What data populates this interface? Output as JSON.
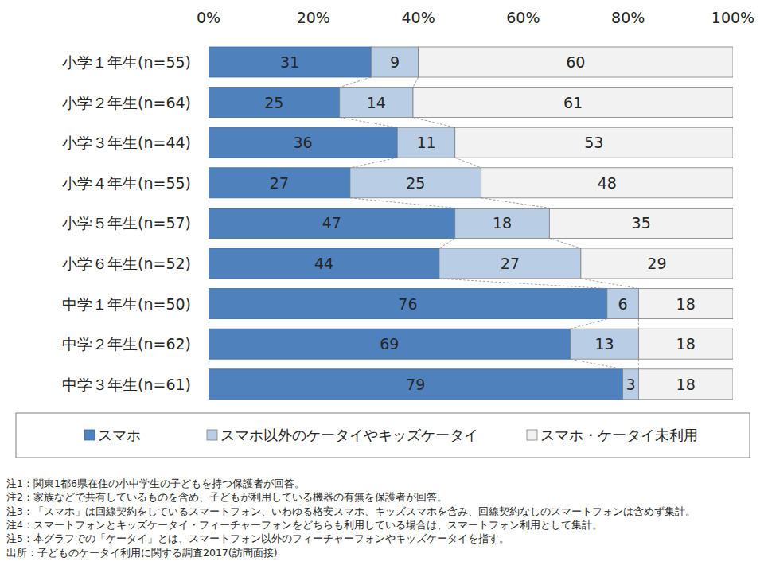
{
  "chart_data": {
    "type": "bar",
    "orientation": "horizontal",
    "stacked": true,
    "data_labels": true,
    "grid": false,
    "legend": "bottom",
    "categories": [
      "小学１年生(n=55)",
      "小学２年生(n=64)",
      "小学３年生(n=44)",
      "小学４年生(n=55)",
      "小学５年生(n=57)",
      "小学６年生(n=52)",
      "中学１年生(n=50)",
      "中学２年生(n=62)",
      "中学３年生(n=61)"
    ],
    "series": [
      {
        "name": "スマホ",
        "color": "#4f81bd",
        "values": [
          31,
          25,
          36,
          27,
          47,
          44,
          76,
          69,
          79
        ]
      },
      {
        "name": "スマホ以外のケータイやキッズケータイ",
        "color": "#b9cde5",
        "values": [
          9,
          14,
          11,
          25,
          18,
          27,
          6,
          13,
          3
        ]
      },
      {
        "name": "スマホ・ケータイ未利用",
        "color": "#f2f2f2",
        "values": [
          60,
          61,
          53,
          48,
          35,
          29,
          18,
          18,
          18
        ]
      }
    ],
    "xlim": [
      0,
      100
    ],
    "xticks": [
      {
        "value": 0,
        "label": "0%"
      },
      {
        "value": 20,
        "label": "20%"
      },
      {
        "value": 40,
        "label": "40%"
      },
      {
        "value": 60,
        "label": "60%"
      },
      {
        "value": 80,
        "label": "80%"
      },
      {
        "value": 100,
        "label": "100%"
      }
    ],
    "annotations": [
      "注1：関東1都6県在住の小中学生の子どもを持つ保護者が回答。",
      "注2：家族などで共有しているものを含め、子どもが利用している機器の有無を保護者が回答。",
      "注3：「スマホ」は回線契約をしているスマートフォン、いわゆる格安スマホ、キッズスマホを含み、回線契約なしのスマートフォンは含めず集計。",
      "注4：スマートフォンとキッズケータイ・フィーチャーフォンをどちらも利用している場合は、スマートフォン利用として集計。",
      "注5：本グラフでの「ケータイ」とは、スマートフォン以外のフィーチャーフォンやキッズケータイを指す。",
      "出所：子どものケータイ利用に関する調査2017(訪問面接)"
    ]
  }
}
